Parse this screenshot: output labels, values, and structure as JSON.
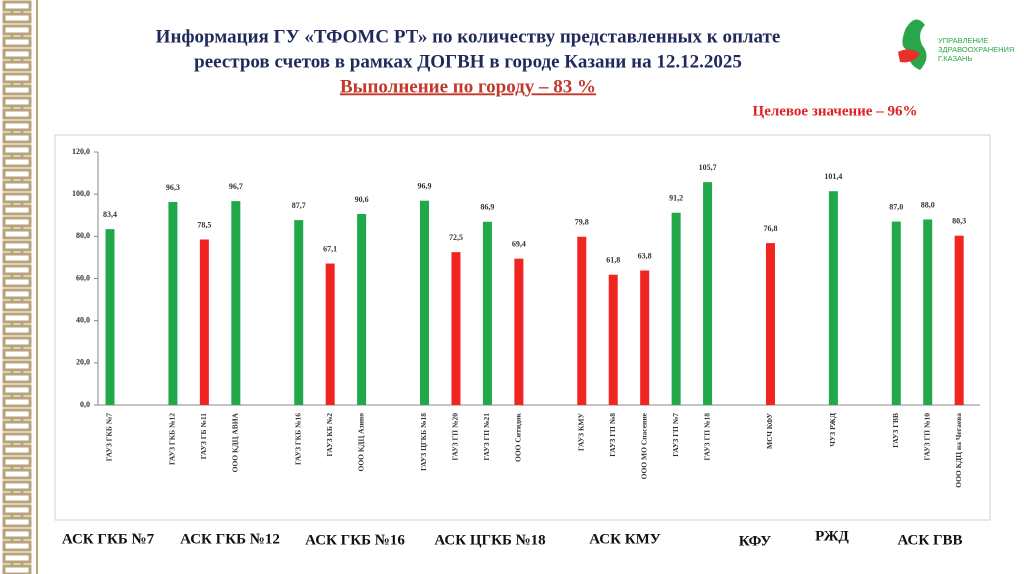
{
  "chart_data": {
    "type": "bar",
    "title_lines": [
      "Информация ГУ «ТФОМС РТ» по количеству представленных к оплате",
      "реестров счетов в рамках ДОГВН в городе Казани на 12.12.2025"
    ],
    "subtitle": "Выполнение по городу – 83 %",
    "annotation": "Целевое значение – 96%",
    "logo_lines": [
      "УПРАВЛЕНИЕ",
      "ЗДРАВООХРАНЕНИЯ",
      "Г.КАЗАНЬ"
    ],
    "categories": [
      "ГАУЗ ГКБ №7",
      null,
      "ГАУЗ ГКБ №12",
      "ГАУЗ ГБ №11",
      "ООО КДЦ АВИА",
      null,
      "ГАУЗ ГКБ №16",
      "ГАУЗ КБ №2",
      "ООО КДЦ Азино",
      null,
      "ГАУЗ ЦГКБ №18",
      "ГАУЗ ГП №20",
      "ГАУЗ ГП №21",
      "ООО Ситидок",
      null,
      "ГАУЗ КМУ",
      "ГАУЗ ГП №8",
      "ООО МО Спасение",
      "ГАУЗ ГП №7",
      "ГАУЗ ГП №18",
      null,
      "МСЧ КФУ",
      null,
      "ЧУЗ РЖД",
      null,
      "ГАУЗ ГВВ",
      "ГАУЗ ГП №10",
      "ООО КДЦ на Чегаева"
    ],
    "values": [
      83.4,
      null,
      96.3,
      78.5,
      96.7,
      null,
      87.7,
      67.1,
      90.6,
      null,
      96.9,
      72.5,
      86.9,
      69.4,
      null,
      79.8,
      61.8,
      63.8,
      91.2,
      105.7,
      null,
      76.8,
      null,
      101.4,
      null,
      87.0,
      88.0,
      80.3
    ],
    "value_labels": [
      "83,4",
      null,
      "96,3",
      "78,5",
      "96,7",
      null,
      "87,7",
      "67,1",
      "90,6",
      null,
      "96,9",
      "72,5",
      "86,9",
      "69,4",
      null,
      "79,8",
      "61,8",
      "63,8",
      "91,2",
      "105,7",
      null,
      "76,8",
      null,
      "101,4",
      null,
      "87,0",
      "88,0",
      "80,3"
    ],
    "colors": [
      "#21a84a",
      null,
      "#21a84a",
      "#f0251f",
      "#21a84a",
      null,
      "#21a84a",
      "#f0251f",
      "#21a84a",
      null,
      "#21a84a",
      "#f0251f",
      "#21a84a",
      "#f0251f",
      null,
      "#f0251f",
      "#f0251f",
      "#f0251f",
      "#21a84a",
      "#21a84a",
      null,
      "#f0251f",
      null,
      "#21a84a",
      null,
      "#21a84a",
      "#21a84a",
      "#f0251f"
    ],
    "ylim": [
      0,
      120
    ],
    "yticks": [
      {
        "value": 0,
        "label": "0,0"
      },
      {
        "value": 20,
        "label": "20,0"
      },
      {
        "value": 40,
        "label": "40,0"
      },
      {
        "value": 60,
        "label": "60,0"
      },
      {
        "value": 80,
        "label": "80,0"
      },
      {
        "value": 100,
        "label": "100,0"
      },
      {
        "value": 120,
        "label": "120,0"
      }
    ],
    "group_labels": [
      "АСК ГКБ №7",
      "АСК ГКБ №12",
      "АСК ГКБ №16",
      "АСК ЦГКБ №18",
      "АСК КМУ",
      "КФУ",
      "РЖД",
      "АСК ГВВ"
    ]
  }
}
